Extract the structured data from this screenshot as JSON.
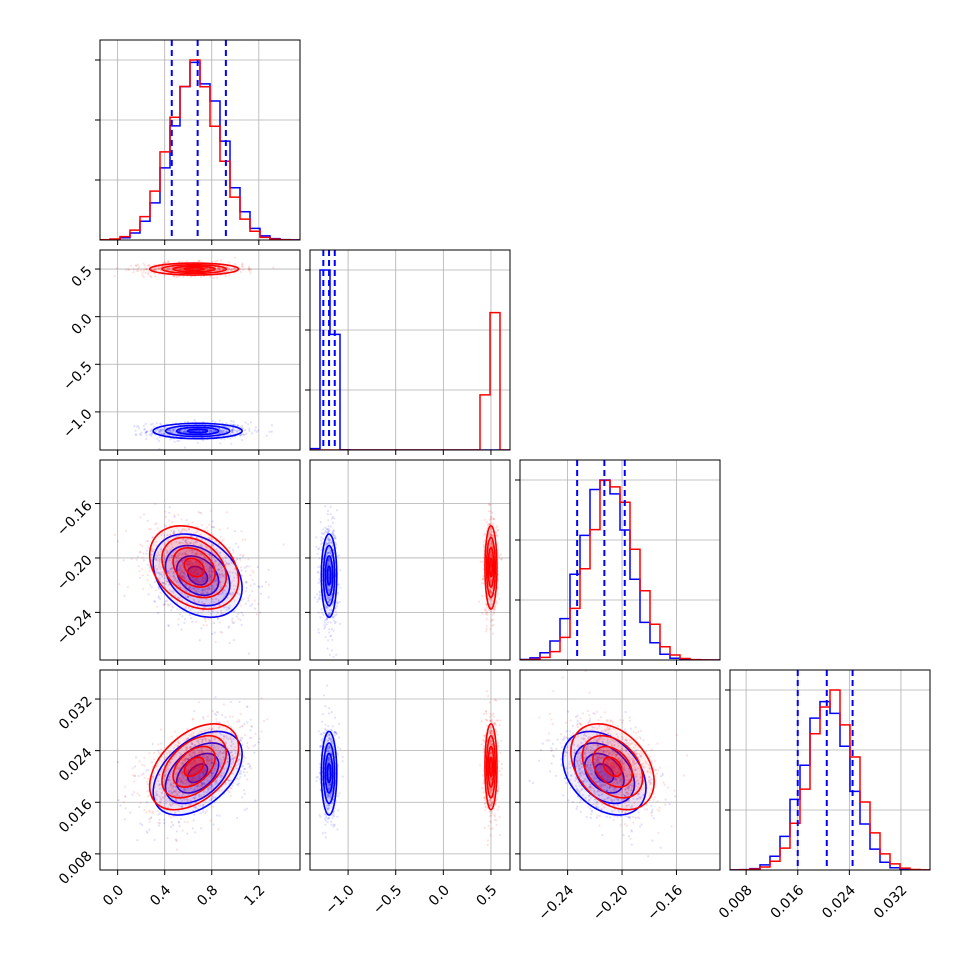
{
  "colors": {
    "series_a": "#0000ff",
    "series_b": "#ff0000",
    "grid": "#b0b0b0",
    "axes": "#000000"
  },
  "chart_data": {
    "type": "corner",
    "title": "",
    "grid": true,
    "series": [
      {
        "color": "#0000ff",
        "means": [
          0.68,
          -1.2,
          -0.213,
          0.0205
        ],
        "stds": [
          0.21,
          0.045,
          0.017,
          0.0036
        ],
        "corr": {
          "0-2": -0.3,
          "0-3": 0.45,
          "2-3": -0.35
        },
        "quantiles": [
          [
            0.46,
            0.68,
            0.92
          ],
          [
            -1.26,
            -1.2,
            -1.14
          ],
          [
            -0.233,
            -0.213,
            -0.198
          ],
          [
            0.016,
            0.0205,
            0.0245
          ]
        ]
      },
      {
        "color": "#ff0000",
        "means": [
          0.65,
          0.5,
          -0.207,
          0.0215
        ],
        "stds": [
          0.21,
          0.035,
          0.017,
          0.0037
        ],
        "corr": {
          "0-2": -0.3,
          "0-3": 0.45,
          "2-3": -0.35
        }
      }
    ],
    "panels": [
      {
        "row": 0,
        "col": 0,
        "kind": "hist",
        "param": 0,
        "xlim": [
          -0.15,
          1.55
        ]
      },
      {
        "row": 1,
        "col": 0,
        "kind": "scatter",
        "x": 0,
        "y": 1,
        "xlim": [
          -0.15,
          1.55
        ],
        "ylim": [
          -1.4,
          0.7
        ]
      },
      {
        "row": 1,
        "col": 1,
        "kind": "hist",
        "param": 1,
        "xlim": [
          -1.4,
          0.7
        ]
      },
      {
        "row": 2,
        "col": 0,
        "kind": "scatter",
        "x": 0,
        "y": 2,
        "xlim": [
          -0.15,
          1.55
        ],
        "ylim": [
          -0.275,
          -0.128
        ]
      },
      {
        "row": 2,
        "col": 1,
        "kind": "scatter",
        "x": 1,
        "y": 2,
        "xlim": [
          -1.4,
          0.7
        ],
        "ylim": [
          -0.275,
          -0.128
        ]
      },
      {
        "row": 2,
        "col": 2,
        "kind": "hist",
        "param": 2,
        "xlim": [
          -0.275,
          -0.128
        ]
      },
      {
        "row": 3,
        "col": 0,
        "kind": "scatter",
        "x": 0,
        "y": 3,
        "xlim": [
          -0.15,
          1.55
        ],
        "ylim": [
          0.0055,
          0.0365
        ]
      },
      {
        "row": 3,
        "col": 1,
        "kind": "scatter",
        "x": 1,
        "y": 3,
        "xlim": [
          -1.4,
          0.7
        ],
        "ylim": [
          0.0055,
          0.0365
        ]
      },
      {
        "row": 3,
        "col": 2,
        "kind": "scatter",
        "x": 2,
        "y": 3,
        "xlim": [
          -0.275,
          -0.128
        ],
        "ylim": [
          0.0055,
          0.0365
        ]
      },
      {
        "row": 3,
        "col": 3,
        "kind": "hist",
        "param": 3,
        "xlim": [
          0.0055,
          0.0365
        ]
      }
    ],
    "x_tick_labels": [
      {
        "col": 0,
        "ticks": [
          0.0,
          0.4,
          0.8,
          1.2
        ],
        "labels": [
          "0.0",
          "0.4",
          "0.8",
          "1.2"
        ]
      },
      {
        "col": 1,
        "ticks": [
          -1.0,
          -0.5,
          0.0,
          0.5
        ],
        "labels": [
          "−1.0",
          "−0.5",
          "0.0",
          "0.5"
        ]
      },
      {
        "col": 2,
        "ticks": [
          -0.24,
          -0.2,
          -0.16
        ],
        "labels": [
          "−0.24",
          "−0.20",
          "−0.16"
        ]
      },
      {
        "col": 3,
        "ticks": [
          0.008,
          0.016,
          0.024,
          0.032
        ],
        "labels": [
          "0.008",
          "0.016",
          "0.024",
          "0.032"
        ]
      }
    ],
    "y_tick_labels": [
      {
        "row": 1,
        "ticks": [
          0.5,
          0.0,
          -0.5,
          -1.0
        ],
        "labels": [
          "0.5",
          "0.0",
          "−0.5",
          "−1.0"
        ]
      },
      {
        "row": 2,
        "ticks": [
          -0.16,
          -0.2,
          -0.24
        ],
        "labels": [
          "−0.16",
          "−0.20",
          "−0.24"
        ]
      },
      {
        "row": 3,
        "ticks": [
          0.032,
          0.024,
          0.016,
          0.008
        ],
        "labels": [
          "0.032",
          "0.024",
          "0.016",
          "0.008"
        ]
      }
    ]
  }
}
